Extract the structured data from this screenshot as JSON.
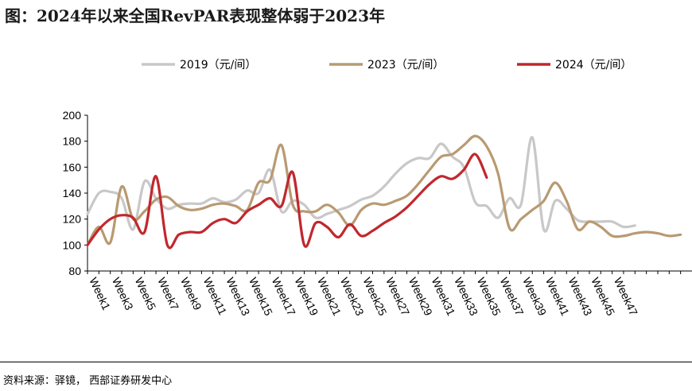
{
  "title": "图：2024年以来全国RevPAR表现整体弱于2023年",
  "source": "资料来源：驿镜， 西部证券研发中心",
  "chart_data": {
    "type": "line",
    "title": "图：2024年以来全国RevPAR表现整体弱于2023年",
    "xlabel": "",
    "ylabel": "",
    "ylim": [
      80,
      200
    ],
    "yticks": [
      80,
      100,
      120,
      140,
      160,
      180,
      200
    ],
    "xticks": [
      "Week1",
      "Week3",
      "Week5",
      "Week7",
      "Week9",
      "Week11",
      "Week13",
      "Week15",
      "Week17",
      "Week19",
      "Week21",
      "Week23",
      "Week25",
      "Week27",
      "Week29",
      "Week31",
      "Week33",
      "Week35",
      "Week37",
      "Week39",
      "Week41",
      "Week43",
      "Week45",
      "Week47"
    ],
    "grid": false,
    "legend_position": "top",
    "series": [
      {
        "name": "2019（元/间）",
        "color": "#c8c8c8",
        "values": [
          124,
          140,
          141,
          136,
          112,
          149,
          136,
          128,
          131,
          132,
          132,
          136,
          133,
          135,
          142,
          140,
          158,
          126,
          134,
          131,
          121,
          124,
          127,
          130,
          135,
          138,
          145,
          155,
          163,
          167,
          167,
          178,
          168,
          160,
          133,
          130,
          121,
          136,
          131,
          183,
          112,
          134,
          128,
          119,
          118,
          118,
          118,
          114,
          115
        ]
      },
      {
        "name": "2023（元/间）",
        "color": "#b89a72",
        "values": [
          100,
          114,
          102,
          145,
          120,
          126,
          135,
          137,
          130,
          127,
          128,
          131,
          132,
          130,
          127,
          148,
          150,
          177,
          131,
          126,
          126,
          131,
          125,
          115,
          127,
          132,
          131,
          134,
          138,
          147,
          158,
          168,
          170,
          177,
          184,
          176,
          155,
          113,
          120,
          127,
          134,
          148,
          134,
          112,
          118,
          114,
          107,
          107,
          109,
          110,
          109,
          107,
          108
        ]
      },
      {
        "name": "2024（元/间）",
        "color": "#c0282d",
        "values": [
          100,
          112,
          120,
          123,
          121,
          110,
          153,
          100,
          108,
          110,
          110,
          117,
          120,
          117,
          126,
          131,
          136,
          130,
          156,
          100,
          117,
          114,
          106,
          116,
          107,
          111,
          117,
          122,
          129,
          138,
          147,
          153,
          151,
          158,
          170,
          152
        ]
      }
    ]
  }
}
